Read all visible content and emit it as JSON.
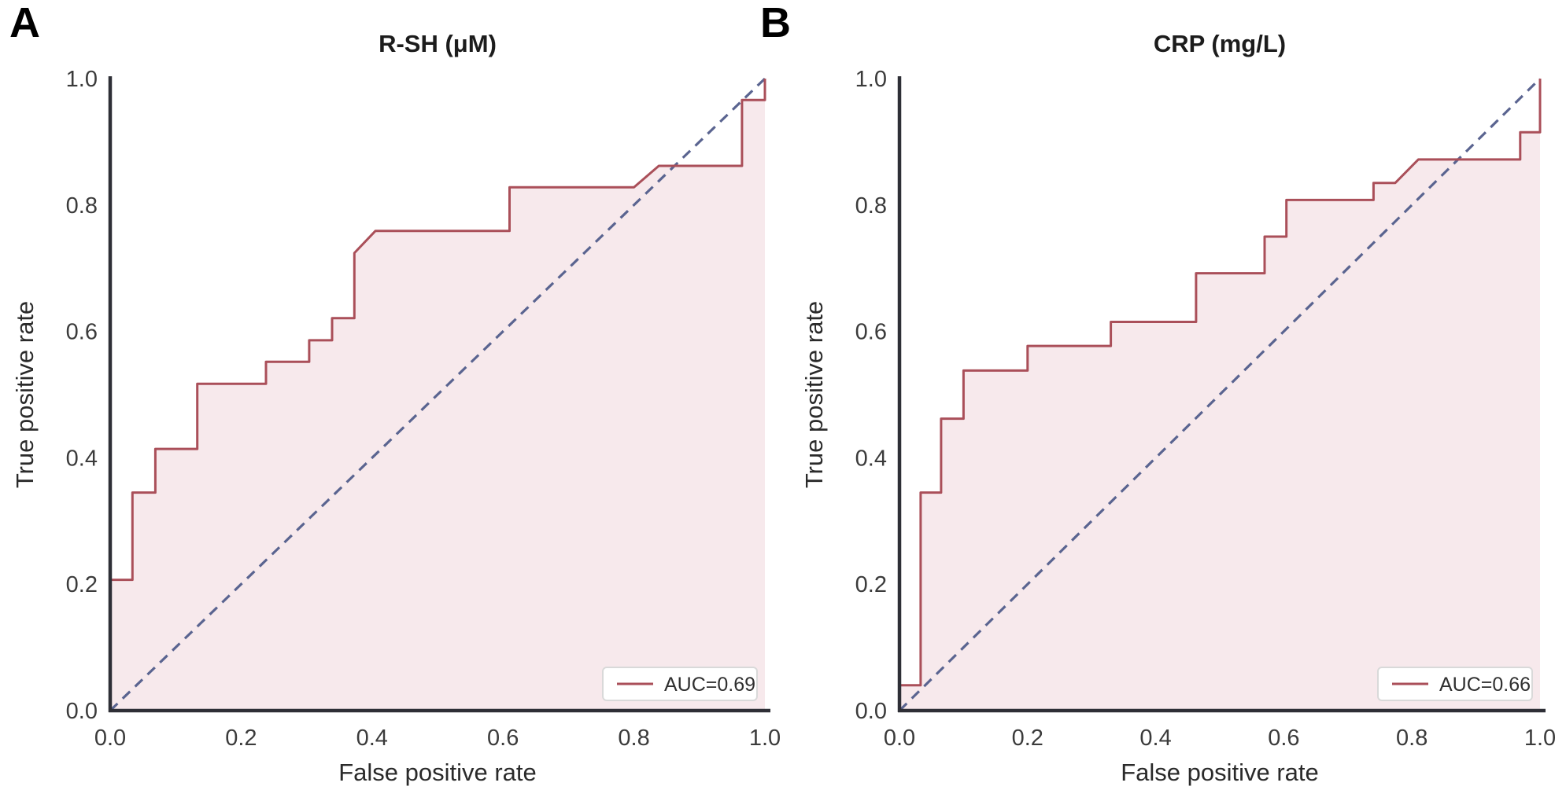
{
  "panels": [
    {
      "letter": "A"
    },
    {
      "letter": "B"
    }
  ],
  "colors": {
    "roc_line": "#aa4f59",
    "roc_fill": "#f7e9ec",
    "diagonal": "#5a6490",
    "spine": "#2e2f36",
    "tick_text": "#3b3b3b",
    "legend_border": "#d9d9d9",
    "legend_background": "#ffffff",
    "background": "#ffffff"
  },
  "chart_data": [
    {
      "type": "line",
      "subtype": "roc-curve",
      "title": "R-SH (μM)",
      "xlabel": "False positive rate",
      "ylabel": "True positive rate",
      "xlim": [
        0.0,
        1.0
      ],
      "ylim": [
        0.0,
        1.0
      ],
      "xticks": [
        "0.0",
        "0.2",
        "0.4",
        "0.6",
        "0.8",
        "1.0"
      ],
      "yticks": [
        "0.0",
        "0.2",
        "0.4",
        "0.6",
        "0.8",
        "1.0"
      ],
      "grid": false,
      "legend": {
        "label": "AUC=0.69",
        "position": "lower right"
      },
      "series": [
        {
          "name": "ROC curve",
          "color": "#aa4f59",
          "fill": "#f7e9ec",
          "points": [
            [
              0.0,
              0.0
            ],
            [
              0.0,
              0.207
            ],
            [
              0.034,
              0.207
            ],
            [
              0.034,
              0.345
            ],
            [
              0.069,
              0.345
            ],
            [
              0.069,
              0.414
            ],
            [
              0.133,
              0.414
            ],
            [
              0.133,
              0.517
            ],
            [
              0.238,
              0.517
            ],
            [
              0.238,
              0.552
            ],
            [
              0.304,
              0.552
            ],
            [
              0.304,
              0.586
            ],
            [
              0.339,
              0.586
            ],
            [
              0.339,
              0.621
            ],
            [
              0.373,
              0.621
            ],
            [
              0.373,
              0.724
            ],
            [
              0.405,
              0.759
            ],
            [
              0.61,
              0.759
            ],
            [
              0.61,
              0.828
            ],
            [
              0.8,
              0.828
            ],
            [
              0.838,
              0.862
            ],
            [
              0.965,
              0.862
            ],
            [
              0.965,
              0.966
            ],
            [
              1.0,
              0.966
            ],
            [
              1.0,
              1.0
            ]
          ]
        },
        {
          "name": "chance line",
          "style": "dashed",
          "color": "#5a6490",
          "points": [
            [
              0.0,
              0.0
            ],
            [
              1.0,
              1.0
            ]
          ]
        }
      ]
    },
    {
      "type": "line",
      "subtype": "roc-curve",
      "title": "CRP (mg/L)",
      "xlabel": "False positive rate",
      "ylabel": "True positive rate",
      "xlim": [
        0.0,
        1.0
      ],
      "ylim": [
        0.0,
        1.0
      ],
      "xticks": [
        "0.0",
        "0.2",
        "0.4",
        "0.6",
        "0.8",
        "1.0"
      ],
      "yticks": [
        "0.0",
        "0.2",
        "0.4",
        "0.6",
        "0.8",
        "1.0"
      ],
      "grid": false,
      "legend": {
        "label": "AUC=0.66",
        "position": "lower right"
      },
      "series": [
        {
          "name": "ROC curve",
          "color": "#aa4f59",
          "fill": "#f7e9ec",
          "points": [
            [
              0.0,
              0.0
            ],
            [
              0.0,
              0.04
            ],
            [
              0.033,
              0.04
            ],
            [
              0.033,
              0.345
            ],
            [
              0.065,
              0.345
            ],
            [
              0.065,
              0.462
            ],
            [
              0.1,
              0.462
            ],
            [
              0.1,
              0.538
            ],
            [
              0.2,
              0.538
            ],
            [
              0.2,
              0.577
            ],
            [
              0.33,
              0.577
            ],
            [
              0.33,
              0.615
            ],
            [
              0.463,
              0.615
            ],
            [
              0.463,
              0.692
            ],
            [
              0.57,
              0.692
            ],
            [
              0.57,
              0.75
            ],
            [
              0.604,
              0.75
            ],
            [
              0.604,
              0.808
            ],
            [
              0.74,
              0.808
            ],
            [
              0.74,
              0.835
            ],
            [
              0.774,
              0.835
            ],
            [
              0.81,
              0.872
            ],
            [
              0.969,
              0.872
            ],
            [
              0.969,
              0.915
            ],
            [
              1.0,
              0.915
            ],
            [
              1.0,
              1.0
            ]
          ]
        },
        {
          "name": "chance line",
          "style": "dashed",
          "color": "#5a6490",
          "points": [
            [
              0.0,
              0.0
            ],
            [
              1.0,
              1.0
            ]
          ]
        }
      ]
    }
  ]
}
